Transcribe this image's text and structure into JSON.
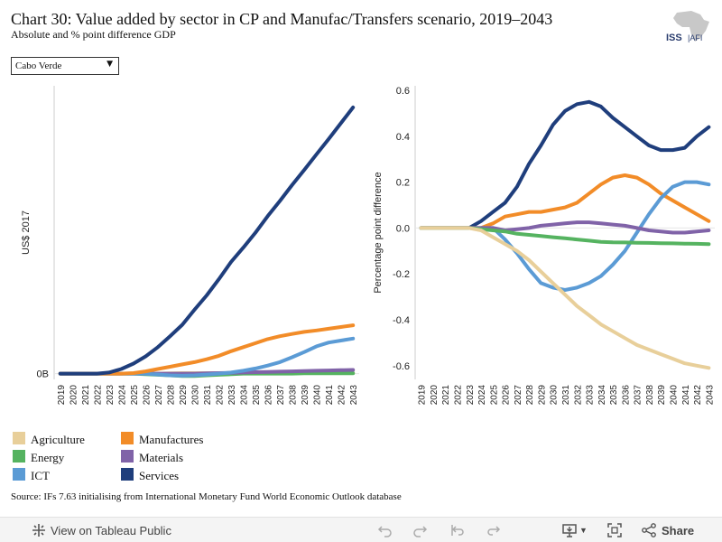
{
  "header": {
    "title": "Chart 30: Value added by sector in CP and Manufac/Transfers scenario, 2019–2043",
    "subtitle": "Absolute and % point difference GDP",
    "logo_text": "ISS|AFI"
  },
  "filter": {
    "selected": "Cabo Verde"
  },
  "source": "Source: IFs 7.63 initialising from International Monetary Fund World Economic Outlook database",
  "toolbar": {
    "view_label": "View on Tableau Public",
    "share_label": "Share"
  },
  "colors": {
    "Agriculture": "#e8cf9a",
    "Manufactures": "#f28c28",
    "Energy": "#55b360",
    "Materials": "#8063a8",
    "ICT": "#5b9bd5",
    "Services": "#1f3e7c",
    "axis": "#cccccc",
    "text": "#222222"
  },
  "legend": [
    {
      "name": "Agriculture",
      "label": "Agriculture"
    },
    {
      "name": "Manufactures",
      "label": "Manufactures"
    },
    {
      "name": "Energy",
      "label": "Energy"
    },
    {
      "name": "Materials",
      "label": "Materials"
    },
    {
      "name": "ICT",
      "label": "ICT"
    },
    {
      "name": "Services",
      "label": "Services"
    }
  ],
  "chart_data": [
    {
      "type": "line",
      "ylabel": "US$ 2017",
      "ytick_labels": [
        {
          "value": 0,
          "label": "0B"
        }
      ],
      "ylim": [
        -0.02,
        1.0
      ],
      "x": [
        "2019",
        "2020",
        "2021",
        "2022",
        "2023",
        "2024",
        "2025",
        "2026",
        "2027",
        "2028",
        "2029",
        "2030",
        "2031",
        "2032",
        "2033",
        "2034",
        "2035",
        "2036",
        "2037",
        "2038",
        "2039",
        "2040",
        "2041",
        "2042",
        "2043"
      ],
      "series": [
        {
          "name": "Agriculture",
          "values": [
            0,
            0,
            0,
            0,
            0,
            0,
            0,
            0,
            0,
            0.001,
            0.002,
            0.002,
            0.002,
            0.002,
            0.002,
            0.002,
            0.002,
            0.002,
            0.002,
            0.002,
            0.002,
            0.002,
            0.002,
            0.002,
            0.002
          ]
        },
        {
          "name": "Energy",
          "values": [
            0,
            0,
            0,
            0,
            0,
            0,
            0,
            -0.002,
            -0.004,
            -0.006,
            -0.008,
            -0.008,
            -0.006,
            -0.004,
            -0.002,
            0,
            0,
            0,
            0,
            0,
            0.001,
            0.001,
            0.001,
            0.001,
            0.001
          ]
        },
        {
          "name": "Materials",
          "values": [
            0,
            0,
            0,
            0,
            0,
            0,
            0,
            0,
            0,
            0,
            0,
            0,
            0.001,
            0.002,
            0.003,
            0.004,
            0.005,
            0.006,
            0.007,
            0.008,
            0.009,
            0.01,
            0.011,
            0.012,
            0.013
          ]
        },
        {
          "name": "ICT",
          "values": [
            0,
            0,
            0,
            0,
            0,
            0,
            0,
            0,
            -0.003,
            -0.006,
            -0.007,
            -0.006,
            -0.003,
            0,
            0.004,
            0.01,
            0.018,
            0.028,
            0.04,
            0.057,
            0.075,
            0.095,
            0.108,
            0.115,
            0.122
          ]
        },
        {
          "name": "Manufactures",
          "values": [
            0,
            0,
            0,
            0,
            0,
            0,
            0.002,
            0.008,
            0.016,
            0.024,
            0.032,
            0.04,
            0.05,
            0.062,
            0.078,
            0.092,
            0.106,
            0.12,
            0.13,
            0.138,
            0.145,
            0.15,
            0.156,
            0.162,
            0.168
          ]
        },
        {
          "name": "Services",
          "values": [
            0,
            0,
            0,
            0,
            0.004,
            0.016,
            0.035,
            0.06,
            0.092,
            0.13,
            0.17,
            0.222,
            0.272,
            0.328,
            0.388,
            0.438,
            0.49,
            0.547,
            0.6,
            0.655,
            0.708,
            0.762,
            0.815,
            0.87,
            0.925
          ]
        }
      ]
    },
    {
      "type": "line",
      "ylabel": "Percentage point difference",
      "ylim": [
        -0.66,
        0.62
      ],
      "yticks": [
        0.6,
        0.4,
        0.2,
        0.0,
        -0.2,
        -0.4,
        -0.6
      ],
      "ytick_labels": [
        "0.6",
        "0.4",
        "0.2",
        "0.0",
        "-0.2",
        "-0.4",
        "-0.6"
      ],
      "x": [
        "2019",
        "2020",
        "2021",
        "2022",
        "2023",
        "2024",
        "2025",
        "2026",
        "2027",
        "2028",
        "2029",
        "2030",
        "2031",
        "2032",
        "2033",
        "2034",
        "2035",
        "2036",
        "2037",
        "2038",
        "2039",
        "2040",
        "2041",
        "2042",
        "2043"
      ],
      "series": [
        {
          "name": "Services",
          "values": [
            0,
            0,
            0,
            0,
            0,
            0.03,
            0.07,
            0.11,
            0.18,
            0.28,
            0.36,
            0.45,
            0.51,
            0.54,
            0.55,
            0.53,
            0.48,
            0.44,
            0.4,
            0.36,
            0.34,
            0.34,
            0.35,
            0.4,
            0.44
          ]
        },
        {
          "name": "Manufactures",
          "values": [
            0,
            0,
            0,
            0,
            0,
            0,
            0.02,
            0.05,
            0.06,
            0.07,
            0.07,
            0.08,
            0.09,
            0.11,
            0.15,
            0.19,
            0.22,
            0.23,
            0.22,
            0.19,
            0.15,
            0.12,
            0.09,
            0.06,
            0.03
          ]
        },
        {
          "name": "ICT",
          "values": [
            0,
            0,
            0,
            0,
            0,
            0,
            0,
            -0.05,
            -0.11,
            -0.18,
            -0.24,
            -0.26,
            -0.27,
            -0.26,
            -0.24,
            -0.21,
            -0.16,
            -0.1,
            -0.02,
            0.06,
            0.13,
            0.18,
            0.2,
            0.2,
            0.19
          ]
        },
        {
          "name": "Materials",
          "values": [
            0,
            0,
            0,
            0,
            0,
            0,
            0,
            -0.01,
            -0.005,
            0,
            0.01,
            0.015,
            0.02,
            0.025,
            0.025,
            0.02,
            0.015,
            0.01,
            0,
            -0.01,
            -0.015,
            -0.02,
            -0.02,
            -0.015,
            -0.01
          ]
        },
        {
          "name": "Energy",
          "values": [
            0,
            0,
            0,
            0,
            0,
            -0.005,
            -0.01,
            -0.015,
            -0.025,
            -0.03,
            -0.035,
            -0.04,
            -0.045,
            -0.05,
            -0.055,
            -0.06,
            -0.062,
            -0.063,
            -0.064,
            -0.065,
            -0.066,
            -0.067,
            -0.068,
            -0.069,
            -0.07
          ]
        },
        {
          "name": "Agriculture",
          "values": [
            0,
            0,
            0,
            0,
            0,
            -0.01,
            -0.04,
            -0.07,
            -0.1,
            -0.14,
            -0.19,
            -0.24,
            -0.29,
            -0.34,
            -0.38,
            -0.42,
            -0.45,
            -0.48,
            -0.51,
            -0.53,
            -0.55,
            -0.57,
            -0.59,
            -0.6,
            -0.61
          ]
        }
      ]
    }
  ]
}
